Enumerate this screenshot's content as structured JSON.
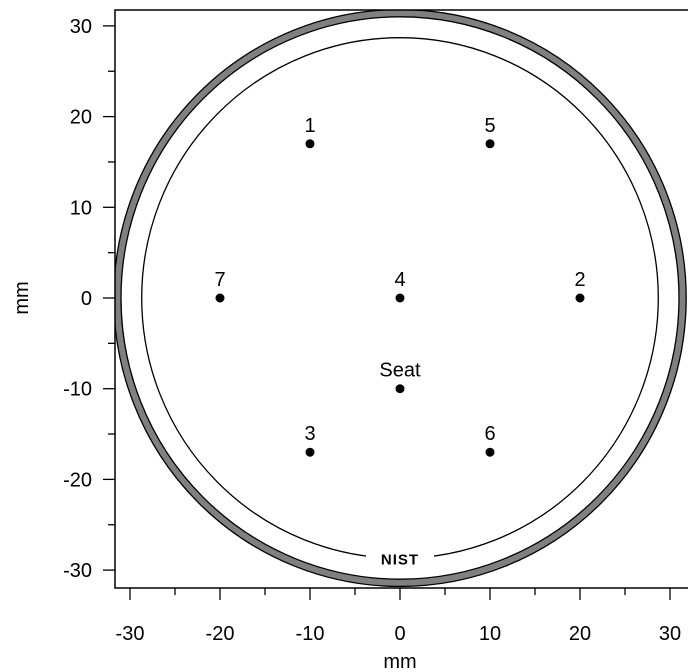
{
  "chart_data": {
    "type": "scatter",
    "xlabel": "mm",
    "ylabel": "mm",
    "xlim": [
      -32,
      32
    ],
    "ylim": [
      -32,
      32
    ],
    "x_ticks": [
      -30,
      -20,
      -10,
      0,
      10,
      20,
      30
    ],
    "y_ticks": [
      -30,
      -20,
      -10,
      0,
      10,
      20,
      30
    ],
    "minor_tick_step": 5,
    "points": [
      {
        "label": "1",
        "x": -10,
        "y": 17
      },
      {
        "label": "5",
        "x": 10,
        "y": 17
      },
      {
        "label": "7",
        "x": -20,
        "y": 0
      },
      {
        "label": "4",
        "x": 0,
        "y": 0
      },
      {
        "label": "2",
        "x": 20,
        "y": 0
      },
      {
        "label": "Seat",
        "x": 0,
        "y": -10
      },
      {
        "label": "3",
        "x": -10,
        "y": -17
      },
      {
        "label": "6",
        "x": 10,
        "y": -17
      }
    ],
    "circles": {
      "outer_ring_outer_radius": 31.8,
      "outer_ring_inner_radius": 31.0,
      "inner_circle_radius": 28.7,
      "ring_color": "#808080",
      "line_color": "#000000"
    },
    "logo": {
      "text": "NIST"
    },
    "grid": false,
    "legend": "none"
  }
}
